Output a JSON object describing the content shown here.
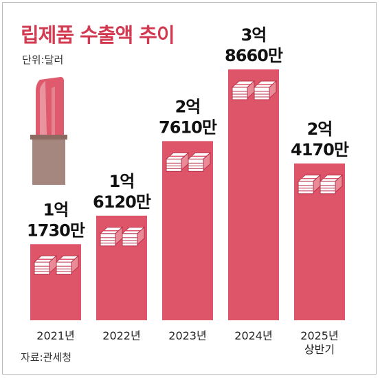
{
  "title": "립제품 수출액 추이",
  "unit": "단위:달러",
  "source": "자료:관세청",
  "colors": {
    "bar": "#de5468",
    "bar_dark": "#c33a50",
    "title": "#d23a52",
    "lipstick_bullet": "#a58780",
    "lipstick_body": "#de5a6c"
  },
  "chart_data": {
    "type": "bar",
    "title": "립제품 수출액 추이",
    "unit": "단위:달러",
    "categories": [
      {
        "line1": "2021년",
        "line2": ""
      },
      {
        "line1": "2022년",
        "line2": ""
      },
      {
        "line1": "2023년",
        "line2": ""
      },
      {
        "line1": "2024년",
        "line2": ""
      },
      {
        "line1": "2025년",
        "line2": "상반기"
      }
    ],
    "values": [
      117300000,
      161200000,
      276100000,
      386600000,
      241700000
    ],
    "value_labels": [
      {
        "line1": "1억",
        "line2": "1730만"
      },
      {
        "line1": "1억",
        "line2": "6120만"
      },
      {
        "line1": "2억",
        "line2": "7610만"
      },
      {
        "line1": "3억",
        "line2": "8660만"
      },
      {
        "line1": "2억",
        "line2": "4170만"
      }
    ],
    "grid": false,
    "legend": "none"
  }
}
